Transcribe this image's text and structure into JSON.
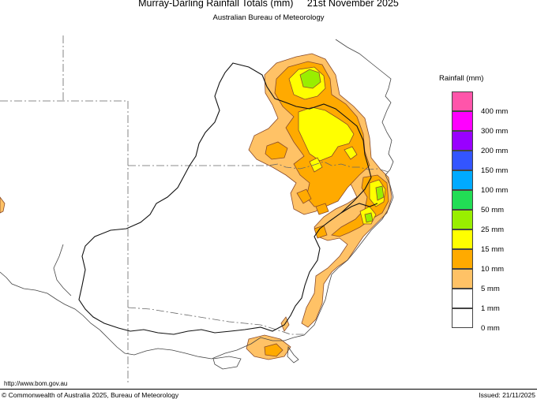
{
  "header": {
    "title": "Murray-Darling Rainfall Totals (mm)     21st November 2025",
    "subtitle": "Australian Bureau of Meteorology"
  },
  "legend": {
    "title": "Rainfall (mm)",
    "items": [
      {
        "label": "400 mm",
        "color": "#ff55aa"
      },
      {
        "label": "300 mm",
        "color": "#ff00ff"
      },
      {
        "label": "200 mm",
        "color": "#9900ff"
      },
      {
        "label": "150 mm",
        "color": "#3355ff"
      },
      {
        "label": "100 mm",
        "color": "#00aaff"
      },
      {
        "label": "50 mm",
        "color": "#22dd55"
      },
      {
        "label": "25 mm",
        "color": "#99ee00"
      },
      {
        "label": "15 mm",
        "color": "#ffff00"
      },
      {
        "label": "10 mm",
        "color": "#ffaa00"
      },
      {
        "label": "5 mm",
        "color": "#ffc266"
      },
      {
        "label": "1 mm",
        "color": "#ffffff"
      },
      {
        "label": "0 mm",
        "color": "#ffffff"
      }
    ]
  },
  "footer": {
    "url": "http://www.bom.gov.au",
    "copyright": "© Commonwealth of Australia 2025, Bureau of Meteorology",
    "issued": "Issued: 21/11/2025"
  }
}
